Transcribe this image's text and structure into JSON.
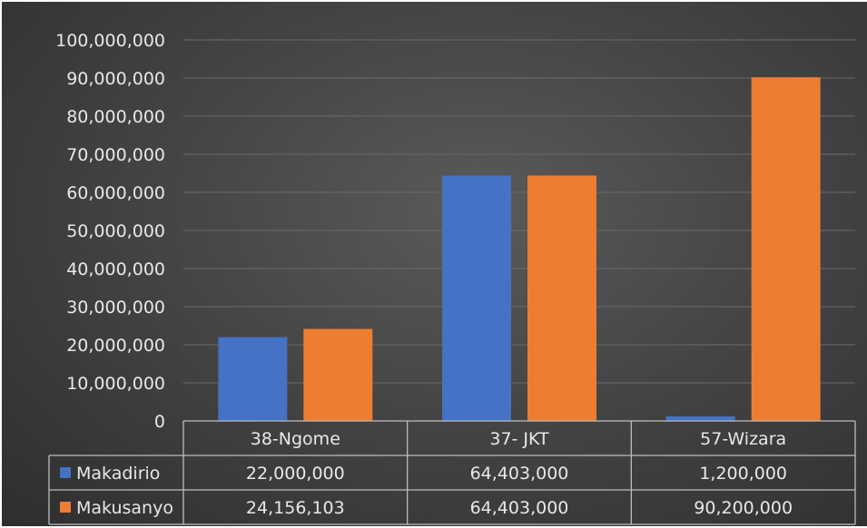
{
  "chart_data": {
    "type": "bar",
    "categories": [
      "38-Ngome",
      "37- JKT",
      "57-Wizara"
    ],
    "series": [
      {
        "name": "Makadirio",
        "values": [
          22000000,
          64403000,
          1200000
        ],
        "labels": [
          "22,000,000",
          "64,403,000",
          "1,200,000"
        ],
        "color": "#4472c4"
      },
      {
        "name": "Makusanyo",
        "values": [
          24156103,
          64403000,
          90200000
        ],
        "labels": [
          "24,156,103",
          "64,403,000",
          "90,200,000"
        ],
        "color": "#ed7d31"
      }
    ],
    "ylim": [
      0,
      100000000
    ],
    "yticks": [
      0,
      10000000,
      20000000,
      30000000,
      40000000,
      50000000,
      60000000,
      70000000,
      80000000,
      90000000,
      100000000
    ],
    "ytick_labels": [
      "0",
      "10,000,000",
      "20,000,000",
      "30,000,000",
      "40,000,000",
      "50,000,000",
      "60,000,000",
      "70,000,000",
      "80,000,000",
      "90,000,000",
      "100,000,000"
    ],
    "grid": true,
    "legend": "data-table",
    "background": "#454545"
  }
}
